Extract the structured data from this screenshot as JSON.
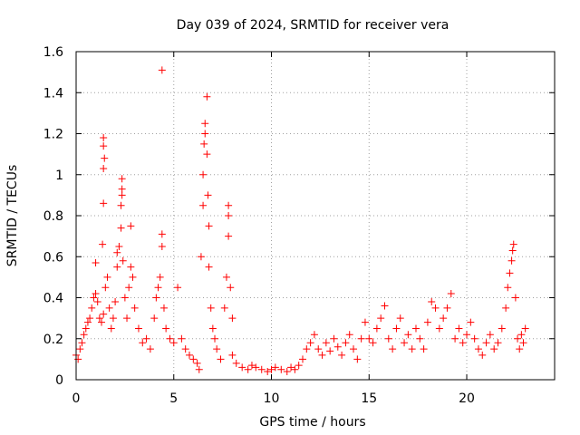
{
  "chart_data": {
    "type": "scatter",
    "title": "Day 039 of 2024, SRMTID for receiver vera",
    "xlabel": "GPS time / hours",
    "ylabel": "SRMTID / TECUs",
    "xlim": [
      0,
      24.5
    ],
    "ylim": [
      0,
      1.6
    ],
    "xticks": [
      0,
      5,
      10,
      15,
      20
    ],
    "xtick_labels": [
      "0",
      "5",
      "10",
      "15",
      "20"
    ],
    "yticks": [
      0,
      0.2,
      0.4,
      0.6,
      0.8,
      1,
      1.2,
      1.4,
      1.6
    ],
    "ytick_labels": [
      "0",
      "0.2",
      "0.4",
      "0.6",
      "0.8",
      "1",
      "1.2",
      "1.4",
      "1.6"
    ],
    "grid": true,
    "marker": "+",
    "series": [
      {
        "name": "SRMTID",
        "color": "#ff0000",
        "points": [
          [
            0.0,
            0.12
          ],
          [
            0.1,
            0.1
          ],
          [
            0.2,
            0.15
          ],
          [
            0.3,
            0.18
          ],
          [
            0.4,
            0.22
          ],
          [
            0.5,
            0.25
          ],
          [
            0.6,
            0.28
          ],
          [
            0.7,
            0.3
          ],
          [
            0.8,
            0.35
          ],
          [
            0.9,
            0.4
          ],
          [
            1.0,
            0.42
          ],
          [
            1.1,
            0.38
          ],
          [
            1.0,
            0.57
          ],
          [
            1.2,
            0.3
          ],
          [
            1.3,
            0.28
          ],
          [
            1.4,
            0.32
          ],
          [
            1.35,
            0.66
          ],
          [
            1.4,
            0.86
          ],
          [
            1.4,
            1.03
          ],
          [
            1.45,
            1.08
          ],
          [
            1.4,
            1.14
          ],
          [
            1.4,
            1.18
          ],
          [
            1.5,
            0.45
          ],
          [
            1.6,
            0.5
          ],
          [
            1.7,
            0.35
          ],
          [
            1.8,
            0.25
          ],
          [
            1.9,
            0.3
          ],
          [
            2.0,
            0.38
          ],
          [
            2.1,
            0.55
          ],
          [
            2.1,
            0.62
          ],
          [
            2.2,
            0.65
          ],
          [
            2.3,
            0.74
          ],
          [
            2.3,
            0.85
          ],
          [
            2.35,
            0.9
          ],
          [
            2.35,
            0.93
          ],
          [
            2.35,
            0.98
          ],
          [
            2.4,
            0.58
          ],
          [
            2.5,
            0.4
          ],
          [
            2.6,
            0.3
          ],
          [
            2.7,
            0.45
          ],
          [
            2.8,
            0.55
          ],
          [
            2.8,
            0.75
          ],
          [
            2.9,
            0.5
          ],
          [
            3.0,
            0.35
          ],
          [
            3.2,
            0.25
          ],
          [
            3.4,
            0.18
          ],
          [
            3.6,
            0.2
          ],
          [
            3.8,
            0.15
          ],
          [
            4.0,
            0.3
          ],
          [
            4.1,
            0.4
          ],
          [
            4.2,
            0.45
          ],
          [
            4.3,
            0.5
          ],
          [
            4.4,
            0.65
          ],
          [
            4.4,
            0.71
          ],
          [
            4.4,
            1.51
          ],
          [
            4.5,
            0.35
          ],
          [
            4.6,
            0.25
          ],
          [
            4.8,
            0.2
          ],
          [
            5.0,
            0.18
          ],
          [
            5.2,
            0.45
          ],
          [
            5.4,
            0.2
          ],
          [
            5.6,
            0.15
          ],
          [
            5.8,
            0.12
          ],
          [
            6.0,
            0.1
          ],
          [
            6.2,
            0.08
          ],
          [
            6.3,
            0.05
          ],
          [
            6.4,
            0.6
          ],
          [
            6.5,
            0.85
          ],
          [
            6.5,
            1.0
          ],
          [
            6.55,
            1.15
          ],
          [
            6.6,
            1.2
          ],
          [
            6.6,
            1.25
          ],
          [
            6.7,
            1.38
          ],
          [
            6.7,
            1.1
          ],
          [
            6.75,
            0.9
          ],
          [
            6.8,
            0.75
          ],
          [
            6.8,
            0.55
          ],
          [
            6.9,
            0.35
          ],
          [
            7.0,
            0.25
          ],
          [
            7.1,
            0.2
          ],
          [
            7.2,
            0.15
          ],
          [
            7.4,
            0.1
          ],
          [
            7.6,
            0.35
          ],
          [
            7.7,
            0.5
          ],
          [
            7.8,
            0.7
          ],
          [
            7.8,
            0.8
          ],
          [
            7.8,
            0.85
          ],
          [
            7.9,
            0.45
          ],
          [
            8.0,
            0.3
          ],
          [
            8.0,
            0.12
          ],
          [
            8.2,
            0.08
          ],
          [
            8.5,
            0.06
          ],
          [
            8.8,
            0.05
          ],
          [
            9.0,
            0.07
          ],
          [
            9.2,
            0.06
          ],
          [
            9.5,
            0.05
          ],
          [
            9.8,
            0.04
          ],
          [
            10.0,
            0.05
          ],
          [
            10.2,
            0.06
          ],
          [
            10.5,
            0.05
          ],
          [
            10.8,
            0.04
          ],
          [
            11.0,
            0.06
          ],
          [
            11.2,
            0.05
          ],
          [
            11.4,
            0.07
          ],
          [
            11.6,
            0.1
          ],
          [
            11.8,
            0.15
          ],
          [
            12.0,
            0.18
          ],
          [
            12.2,
            0.22
          ],
          [
            12.4,
            0.15
          ],
          [
            12.6,
            0.12
          ],
          [
            12.8,
            0.18
          ],
          [
            13.0,
            0.14
          ],
          [
            13.2,
            0.2
          ],
          [
            13.4,
            0.16
          ],
          [
            13.6,
            0.12
          ],
          [
            13.8,
            0.18
          ],
          [
            14.0,
            0.22
          ],
          [
            14.2,
            0.15
          ],
          [
            14.4,
            0.1
          ],
          [
            14.6,
            0.2
          ],
          [
            14.8,
            0.28
          ],
          [
            15.0,
            0.2
          ],
          [
            15.2,
            0.18
          ],
          [
            15.4,
            0.25
          ],
          [
            15.6,
            0.3
          ],
          [
            15.8,
            0.36
          ],
          [
            16.0,
            0.2
          ],
          [
            16.2,
            0.15
          ],
          [
            16.4,
            0.25
          ],
          [
            16.6,
            0.3
          ],
          [
            16.8,
            0.18
          ],
          [
            17.0,
            0.22
          ],
          [
            17.2,
            0.15
          ],
          [
            17.4,
            0.25
          ],
          [
            17.6,
            0.2
          ],
          [
            17.8,
            0.15
          ],
          [
            18.0,
            0.28
          ],
          [
            18.2,
            0.38
          ],
          [
            18.4,
            0.35
          ],
          [
            18.6,
            0.25
          ],
          [
            18.8,
            0.3
          ],
          [
            19.0,
            0.35
          ],
          [
            19.2,
            0.42
          ],
          [
            19.4,
            0.2
          ],
          [
            19.6,
            0.25
          ],
          [
            19.8,
            0.18
          ],
          [
            20.0,
            0.22
          ],
          [
            20.2,
            0.28
          ],
          [
            20.4,
            0.2
          ],
          [
            20.6,
            0.15
          ],
          [
            20.8,
            0.12
          ],
          [
            21.0,
            0.18
          ],
          [
            21.2,
            0.22
          ],
          [
            21.4,
            0.15
          ],
          [
            21.6,
            0.18
          ],
          [
            21.8,
            0.25
          ],
          [
            22.0,
            0.35
          ],
          [
            22.1,
            0.45
          ],
          [
            22.2,
            0.52
          ],
          [
            22.3,
            0.58
          ],
          [
            22.35,
            0.63
          ],
          [
            22.4,
            0.66
          ],
          [
            22.5,
            0.4
          ],
          [
            22.6,
            0.2
          ],
          [
            22.7,
            0.15
          ],
          [
            22.8,
            0.22
          ],
          [
            22.9,
            0.18
          ],
          [
            23.0,
            0.25
          ]
        ]
      }
    ]
  }
}
